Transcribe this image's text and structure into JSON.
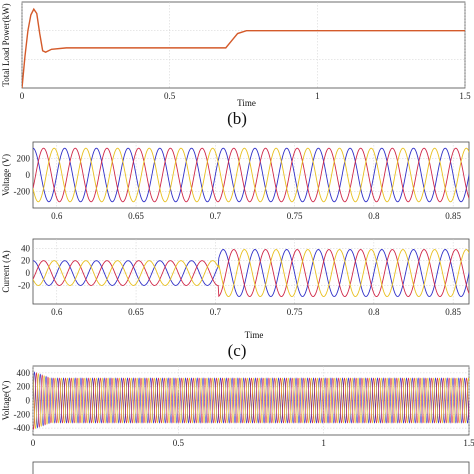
{
  "panel_labels": [
    "(b)",
    "(c)"
  ],
  "chart_data": [
    {
      "type": "line",
      "title": "",
      "xlabel": "Time",
      "ylabel": "Total Load Power(kW)",
      "xlim": [
        0,
        1.5
      ],
      "ylim": [
        0,
        60
      ],
      "xticks": [
        "0",
        "0.5",
        "1",
        "1.5"
      ],
      "grid": true,
      "series": [
        {
          "color": "#d45a2a",
          "x": [
            0,
            0.01,
            0.02,
            0.03,
            0.04,
            0.05,
            0.06,
            0.07,
            0.08,
            0.1,
            0.15,
            0.3,
            0.69,
            0.71,
            0.73,
            0.76,
            1.0,
            1.5
          ],
          "y": [
            0,
            22,
            40,
            51,
            55,
            52,
            38,
            26,
            25,
            27,
            28,
            28,
            28,
            33,
            38,
            40,
            40,
            40
          ]
        }
      ]
    },
    {
      "type": "line",
      "title": "",
      "xlabel": "",
      "ylabel": "Voltage (V)",
      "xlim": [
        0.585,
        0.86
      ],
      "ylim": [
        -400,
        400
      ],
      "xticks": [
        "0.6",
        "0.65",
        "0.7",
        "0.75",
        "0.8",
        "0.85"
      ],
      "yticks": [
        "-200",
        "0",
        "200"
      ],
      "grid": true,
      "waveform": {
        "kind": "three-phase sine",
        "amplitude": 325,
        "frequency_hz": 50
      },
      "series": [
        {
          "color": "#3030c8"
        },
        {
          "color": "#d02848"
        },
        {
          "color": "#e8c020"
        }
      ]
    },
    {
      "type": "line",
      "title": "",
      "xlabel": "Time",
      "ylabel": "Current (A)",
      "xlim": [
        0.585,
        0.86
      ],
      "ylim": [
        -50,
        55
      ],
      "xticks": [
        "0.6",
        "0.65",
        "0.7",
        "0.75",
        "0.8",
        "0.85"
      ],
      "yticks": [
        "-20",
        "0",
        "20",
        "40"
      ],
      "grid": true,
      "waveform": {
        "kind": "three-phase sine",
        "frequency_hz": 50,
        "amplitude_before": 20,
        "amplitude_after": 38,
        "step_time": 0.702
      },
      "series": [
        {
          "color": "#3030c8"
        },
        {
          "color": "#d02848"
        },
        {
          "color": "#e8c020"
        }
      ]
    },
    {
      "type": "line",
      "title": "",
      "xlabel": "",
      "ylabel": "Voltage(V)",
      "xlim": [
        0,
        1.5
      ],
      "ylim": [
        -500,
        500
      ],
      "xticks": [
        "0",
        "0.5",
        "1",
        "1.5"
      ],
      "yticks": [
        "-400",
        "-200",
        "0",
        "200",
        "400"
      ],
      "grid": true,
      "waveform": {
        "kind": "three-phase sine",
        "amplitude": 325,
        "frequency_hz": 50,
        "startup_amplitude": 420
      },
      "series": [
        {
          "color": "#3030c8"
        },
        {
          "color": "#d02848"
        },
        {
          "color": "#e8c020"
        }
      ]
    }
  ]
}
